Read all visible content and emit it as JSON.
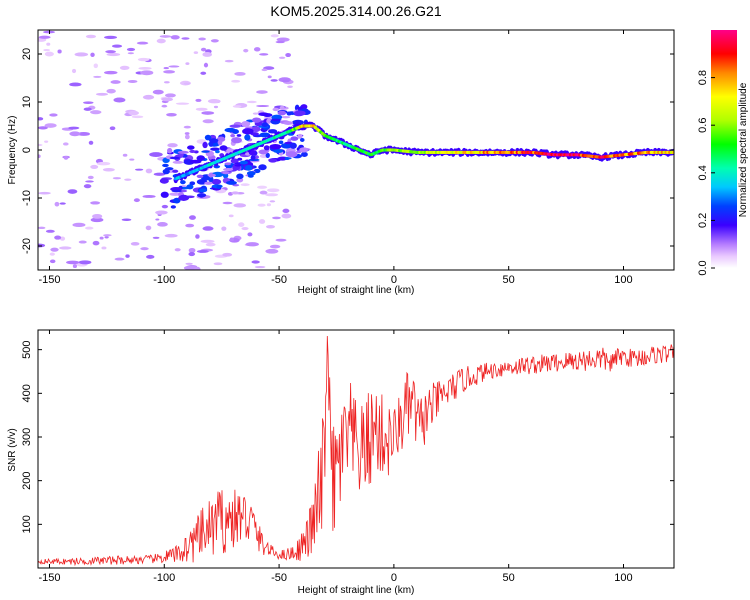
{
  "page": {
    "title": "KOM5.2025.314.00.26.G21"
  },
  "colors": {
    "snr_line": "#ee2222",
    "background": "#ffffff",
    "frame": "#000000"
  },
  "chart_data": [
    {
      "type": "heatmap",
      "name": "spectrogram",
      "title": "KOM5.2025.314.00.26.G21",
      "xlabel": "Height of straight line (km)",
      "ylabel": "Frequency (Hz)",
      "xlim": [
        -155,
        122
      ],
      "ylim": [
        -25,
        25
      ],
      "xticks": [
        -150,
        -100,
        -50,
        0,
        50,
        100
      ],
      "yticks": [
        -20,
        -10,
        0,
        10,
        20
      ],
      "xtick_labels": [
        "-150",
        "-100",
        "-50",
        "0",
        "50",
        "100"
      ],
      "ytick_labels": [
        "-20",
        "-10",
        "0",
        "10",
        "20"
      ],
      "ridge": {
        "x": [
          -95,
          -90,
          -85,
          -80,
          -75,
          -70,
          -65,
          -60,
          -55,
          -50,
          -45,
          -40,
          -35,
          -30,
          -25,
          -20,
          -15,
          -10,
          -5,
          0,
          10,
          20,
          30,
          40,
          50,
          60,
          70,
          80,
          90,
          100,
          110,
          122
        ],
        "freq": [
          -6,
          -5,
          -4,
          -3,
          -2,
          -1,
          0,
          1,
          2,
          3,
          4,
          5,
          5,
          3,
          2,
          1,
          0,
          -1,
          0,
          0,
          -0.5,
          -0.5,
          -0.5,
          -0.5,
          -0.5,
          -0.5,
          -1,
          -1,
          -1.5,
          -1,
          -0.5,
          -0.5
        ],
        "amplitude": [
          0.35,
          0.3,
          0.35,
          0.4,
          0.35,
          0.4,
          0.4,
          0.45,
          0.4,
          0.45,
          0.5,
          0.75,
          0.8,
          0.55,
          0.5,
          0.45,
          0.55,
          0.5,
          0.55,
          0.6,
          0.6,
          0.7,
          0.75,
          0.8,
          0.85,
          0.9,
          0.95,
          0.95,
          0.9,
          0.85,
          0.8,
          0.75
        ]
      },
      "colorbar": {
        "label": "Normalized spectral amplitude",
        "range": [
          0,
          1
        ],
        "ticks": [
          0.0,
          0.2,
          0.4,
          0.6,
          0.8
        ],
        "tick_labels": [
          "0.0",
          "0.2",
          "0.4",
          "0.6",
          "0.8"
        ]
      }
    },
    {
      "type": "line",
      "name": "snr",
      "xlabel": "Height of straight line (km)",
      "ylabel": "SNR (v/v)",
      "xlim": [
        -155,
        122
      ],
      "ylim": [
        0,
        545
      ],
      "xticks": [
        -150,
        -100,
        -50,
        0,
        50,
        100
      ],
      "yticks": [
        100,
        200,
        300,
        400,
        500
      ],
      "xtick_labels": [
        "-150",
        "-100",
        "-50",
        "0",
        "50",
        "100"
      ],
      "ytick_labels": [
        "100",
        "200",
        "300",
        "400",
        "500"
      ],
      "series": [
        {
          "name": "SNR",
          "x": [
            -155,
            -140,
            -120,
            -105,
            -95,
            -88,
            -83,
            -78,
            -74,
            -70,
            -66,
            -62,
            -58,
            -54,
            -50,
            -46,
            -42,
            -38,
            -35,
            -32,
            -30,
            -29,
            -27,
            -25,
            -22,
            -19,
            -15,
            -12,
            -8,
            -5,
            -2,
            1,
            4,
            8,
            11,
            15,
            20,
            25,
            30,
            35,
            40,
            50,
            60,
            70,
            80,
            90,
            95,
            98,
            105,
            110,
            115,
            122
          ],
          "value": [
            15,
            15,
            18,
            20,
            30,
            55,
            80,
            100,
            110,
            110,
            120,
            105,
            60,
            40,
            30,
            32,
            40,
            65,
            100,
            170,
            260,
            540,
            180,
            210,
            280,
            300,
            260,
            280,
            320,
            300,
            290,
            310,
            350,
            380,
            320,
            360,
            390,
            410,
            430,
            440,
            450,
            460,
            465,
            470,
            475,
            480,
            470,
            485,
            480,
            485,
            490,
            490
          ],
          "spike": [
            5,
            8,
            10,
            10,
            20,
            45,
            60,
            75,
            80,
            70,
            65,
            55,
            30,
            15,
            10,
            15,
            25,
            45,
            80,
            150,
            120,
            10,
            160,
            140,
            110,
            130,
            100,
            120,
            110,
            100,
            90,
            60,
            90,
            80,
            70,
            60,
            40,
            35,
            30,
            25,
            20,
            20,
            22,
            22,
            25,
            28,
            25,
            20,
            22,
            22,
            22,
            22
          ]
        }
      ]
    }
  ]
}
